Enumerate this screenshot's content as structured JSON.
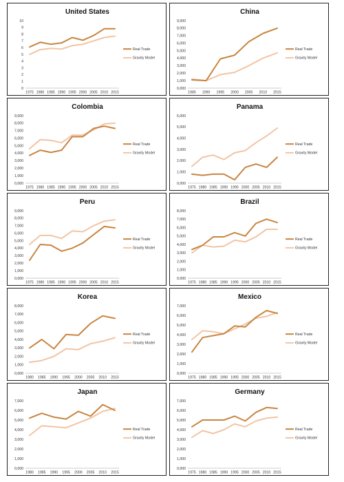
{
  "colors": {
    "real": "#c8843f",
    "gravity": "#f2c4a3"
  },
  "chart_data": [
    {
      "type": "line",
      "title": "United States",
      "x": [
        1975,
        1980,
        1985,
        1990,
        1995,
        2000,
        2005,
        2010,
        2015
      ],
      "yticks": [
        "0",
        "1",
        "2",
        "3",
        "4",
        "5",
        "6",
        "7",
        "8",
        "9",
        "10"
      ],
      "ylim": [
        0,
        10
      ],
      "series": [
        {
          "name": "Real Trade",
          "values": [
            6.1,
            6.8,
            6.5,
            6.7,
            7.5,
            7.1,
            7.8,
            8.8,
            8.8
          ]
        },
        {
          "name": "Gravity Model",
          "values": [
            5.0,
            5.7,
            5.9,
            5.8,
            6.3,
            6.5,
            7.0,
            7.5,
            7.7
          ]
        }
      ]
    },
    {
      "type": "line",
      "title": "China",
      "x": [
        1985,
        1990,
        1995,
        2000,
        2005,
        2010,
        2015
      ],
      "yticks": [
        "0,000",
        "1,000",
        "2,000",
        "3,000",
        "4,000",
        "5,000",
        "6,000",
        "7,000",
        "8,000",
        "9,000"
      ],
      "ylim": [
        0,
        9000
      ],
      "series": [
        {
          "name": "Real Trade",
          "values": [
            1100,
            1000,
            3900,
            4400,
            6200,
            7300,
            8000
          ]
        },
        {
          "name": "Gravity Model",
          "values": [
            1200,
            1000,
            1800,
            2100,
            3000,
            4000,
            4700
          ]
        }
      ]
    },
    {
      "type": "line",
      "title": "Colombia",
      "x": [
        1975,
        1980,
        1985,
        1990,
        1995,
        2000,
        2005,
        2010,
        2015
      ],
      "yticks": [
        "0,000",
        "1,000",
        "2,000",
        "3,000",
        "4,000",
        "5,000",
        "6,000",
        "7,000",
        "8,000",
        "9,000"
      ],
      "ylim": [
        0,
        9000
      ],
      "series": [
        {
          "name": "Real Trade",
          "values": [
            3700,
            4400,
            4100,
            4400,
            6200,
            6200,
            7300,
            7600,
            7300
          ]
        },
        {
          "name": "Gravity Model",
          "values": [
            4600,
            5800,
            5700,
            5400,
            6400,
            6400,
            7100,
            7900,
            8000
          ]
        }
      ]
    },
    {
      "type": "line",
      "title": "Panama",
      "x": [
        1975,
        1980,
        1985,
        1990,
        1995,
        2000,
        2005,
        2010,
        2015
      ],
      "yticks": [
        "0,000",
        "1,000",
        "2,000",
        "3,000",
        "4,000",
        "5,000",
        "6,000"
      ],
      "ylim": [
        0,
        6000
      ],
      "series": [
        {
          "name": "Real Trade",
          "values": [
            800,
            700,
            800,
            800,
            300,
            1400,
            1700,
            1400,
            2300
          ]
        },
        {
          "name": "Gravity Model",
          "values": [
            1500,
            2300,
            2500,
            2100,
            2700,
            2900,
            3600,
            4200,
            4900
          ]
        }
      ]
    },
    {
      "type": "line",
      "title": "Peru",
      "x": [
        1975,
        1980,
        1985,
        1990,
        1995,
        2000,
        2005,
        2010,
        2015
      ],
      "yticks": [
        "0,000",
        "1,000",
        "2,000",
        "3,000",
        "4,000",
        "5,000",
        "6,000",
        "7,000",
        "8,000",
        "9,000"
      ],
      "ylim": [
        0,
        9000
      ],
      "series": [
        {
          "name": "Real Trade",
          "values": [
            2400,
            4500,
            4400,
            3600,
            4000,
            4700,
            5800,
            6900,
            6700
          ]
        },
        {
          "name": "Gravity Model",
          "values": [
            4500,
            5700,
            5700,
            5300,
            6300,
            6200,
            7000,
            7600,
            7800
          ]
        }
      ]
    },
    {
      "type": "line",
      "title": "Brazil",
      "x": [
        1975,
        1980,
        1985,
        1990,
        1995,
        2000,
        2005,
        2010,
        2015
      ],
      "yticks": [
        "0,000",
        "1,000",
        "2,000",
        "3,000",
        "4,000",
        "5,000",
        "6,000",
        "7,000",
        "8,000"
      ],
      "ylim": [
        0,
        8000
      ],
      "series": [
        {
          "name": "Real Trade",
          "values": [
            3400,
            3900,
            4900,
            4900,
            5400,
            5000,
            6500,
            7000,
            6600
          ]
        },
        {
          "name": "Gravity Model",
          "values": [
            3000,
            3900,
            3700,
            3800,
            4500,
            4300,
            4900,
            5800,
            5800
          ]
        }
      ]
    },
    {
      "type": "line",
      "title": "Korea",
      "x": [
        1980,
        1985,
        1990,
        1995,
        2000,
        2005,
        2010,
        2015
      ],
      "yticks": [
        "0,000",
        "1,000",
        "2,000",
        "3,000",
        "4,000",
        "5,000",
        "6,000",
        "7,000",
        "8,000"
      ],
      "ylim": [
        0,
        8000
      ],
      "series": [
        {
          "name": "Real Trade",
          "values": [
            3000,
            4000,
            2900,
            4600,
            4500,
            5900,
            6800,
            6500
          ]
        },
        {
          "name": "Gravity Model",
          "values": [
            1300,
            1500,
            2000,
            2900,
            2800,
            3500,
            3800,
            4200
          ]
        }
      ]
    },
    {
      "type": "line",
      "title": "Mexico",
      "x": [
        1975,
        1980,
        1985,
        1990,
        1995,
        2000,
        2005,
        2010,
        2015
      ],
      "yticks": [
        "0,000",
        "1,000",
        "2,000",
        "3,000",
        "4,000",
        "5,000",
        "6,000",
        "7,000"
      ],
      "ylim": [
        0,
        7000
      ],
      "series": [
        {
          "name": "Real Trade",
          "values": [
            2200,
            3700,
            3900,
            4100,
            4900,
            4800,
            5800,
            6500,
            6200
          ]
        },
        {
          "name": "Gravity Model",
          "values": [
            3500,
            4400,
            4300,
            4100,
            4600,
            5100,
            5700,
            5900,
            6300
          ]
        }
      ]
    },
    {
      "type": "line",
      "title": "Japan",
      "x": [
        1980,
        1985,
        1990,
        1995,
        2000,
        2005,
        2010,
        2015
      ],
      "yticks": [
        "0,000",
        "1,000",
        "2,000",
        "3,000",
        "4,000",
        "5,000",
        "6,000",
        "7,000"
      ],
      "ylim": [
        0,
        7000
      ],
      "series": [
        {
          "name": "Real Trade",
          "values": [
            5200,
            5700,
            5300,
            5100,
            5900,
            5400,
            6600,
            6000
          ]
        },
        {
          "name": "Gravity Model",
          "values": [
            3400,
            4400,
            4300,
            4200,
            4700,
            5200,
            5900,
            6200
          ]
        }
      ]
    },
    {
      "type": "line",
      "title": "Germany",
      "x": [
        1975,
        1980,
        1985,
        1990,
        1995,
        2000,
        2005,
        2010,
        2015
      ],
      "yticks": [
        "0,000",
        "1,000",
        "2,000",
        "3,000",
        "4,000",
        "5,000",
        "6,000",
        "7,000"
      ],
      "ylim": [
        0,
        7000
      ],
      "series": [
        {
          "name": "Real Trade",
          "values": [
            4300,
            5000,
            5000,
            5000,
            5400,
            4900,
            5800,
            6300,
            6200
          ]
        },
        {
          "name": "Gravity Model",
          "values": [
            3200,
            3900,
            3600,
            4000,
            4600,
            4300,
            4900,
            5200,
            5300
          ]
        }
      ]
    }
  ]
}
